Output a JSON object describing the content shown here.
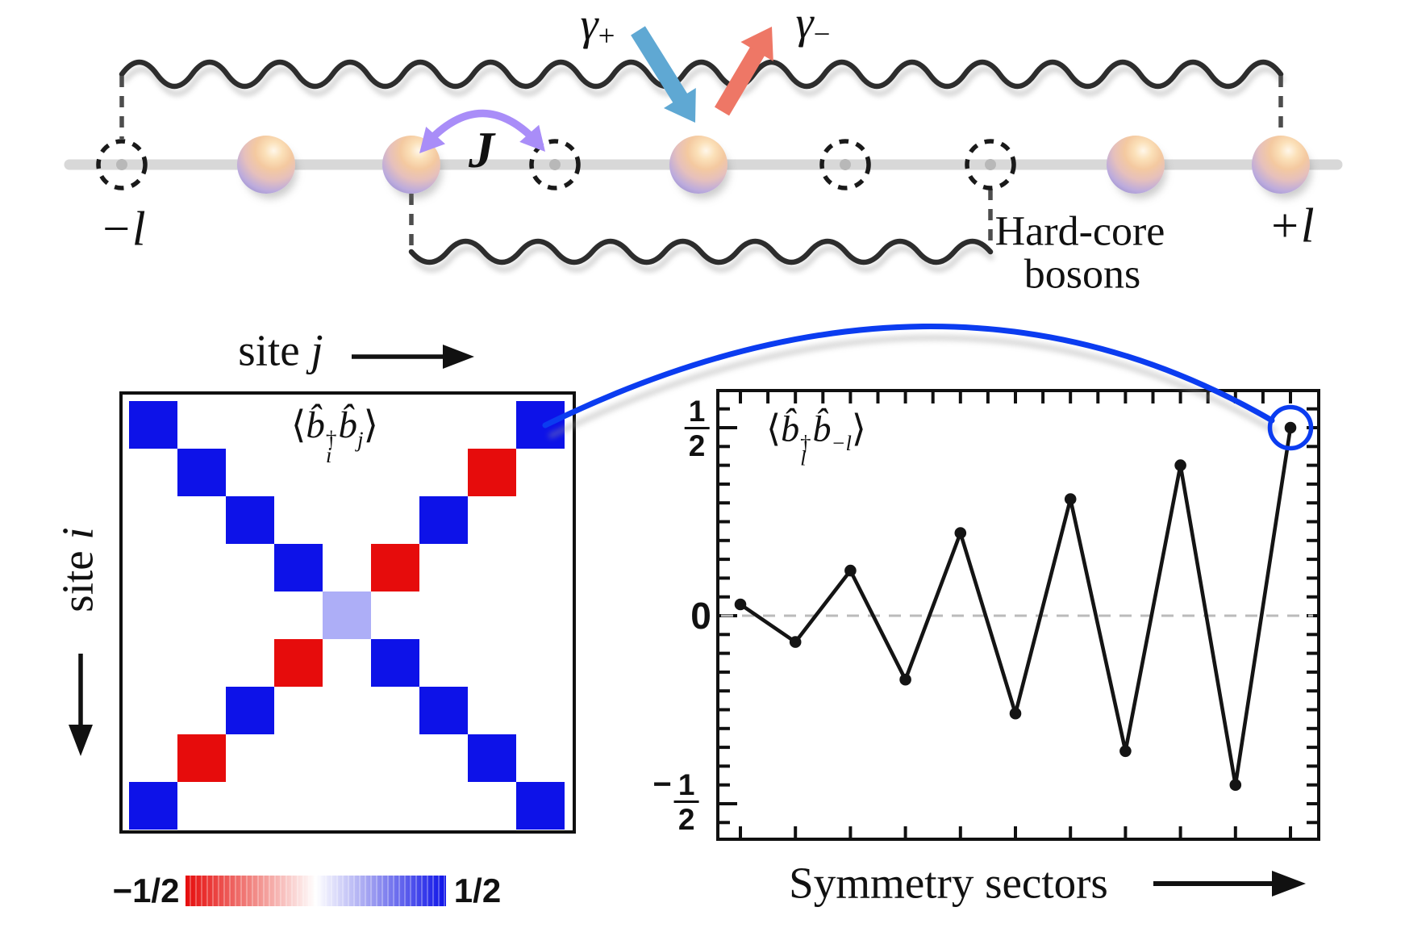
{
  "diagram": {
    "gamma_plus": {
      "base": "γ",
      "sub": "+"
    },
    "gamma_minus": {
      "base": "γ",
      "sub": "−"
    },
    "hopping_label": "J",
    "left_site_label": "−l",
    "right_site_label": "+l",
    "hardcore_label": {
      "line1": "Hard-core",
      "line2": "bosons"
    },
    "sites": [
      {
        "index": 1,
        "type": "empty"
      },
      {
        "index": 2,
        "type": "boson"
      },
      {
        "index": 3,
        "type": "boson"
      },
      {
        "index": 4,
        "type": "empty"
      },
      {
        "index": 5,
        "type": "boson"
      },
      {
        "index": 6,
        "type": "empty"
      },
      {
        "index": 7,
        "type": "empty"
      },
      {
        "index": 8,
        "type": "boson"
      },
      {
        "index": 9,
        "type": "boson"
      }
    ]
  },
  "heatmap": {
    "xlabel": {
      "word": "site ",
      "var": "j"
    },
    "ylabel": {
      "word": "site ",
      "var": "i"
    },
    "title": {
      "open": "⟨",
      "b1": "b̂",
      "dagger": "†",
      "sub1": "i",
      "b2": "b̂",
      "sub2": "j",
      "close": "⟩"
    },
    "colorbar": {
      "min_label": "−1/2",
      "max_label": "1/2"
    }
  },
  "lineplot": {
    "title": {
      "open": "⟨",
      "b1": "b̂",
      "dagger": "†",
      "sub1": "l",
      "b2": "b̂",
      "sub2": "−l",
      "close": "⟩"
    },
    "xlabel": "Symmetry sectors",
    "ytick_top": {
      "num": "1",
      "den": "2"
    },
    "ytick_zero": "0",
    "ytick_bottom": {
      "sign": "−",
      "num": "1",
      "den": "2"
    }
  },
  "chart_data": [
    {
      "type": "heatmap",
      "title": "⟨b̂_i† b̂_j⟩",
      "xlabel": "site j",
      "ylabel": "site i",
      "grid_size": [
        9,
        9
      ],
      "value_range": [
        -0.5,
        0.5
      ],
      "colormap": {
        "min_color": "#e60c0c",
        "mid_color": "#ffffff",
        "max_color": "#0d12e8"
      },
      "cells": [
        {
          "i": 1,
          "j": 1,
          "v": 0.5
        },
        {
          "i": 2,
          "j": 2,
          "v": 0.5
        },
        {
          "i": 3,
          "j": 3,
          "v": 0.5
        },
        {
          "i": 4,
          "j": 4,
          "v": 0.5
        },
        {
          "i": 5,
          "j": 5,
          "v": 0.17
        },
        {
          "i": 6,
          "j": 6,
          "v": 0.5
        },
        {
          "i": 7,
          "j": 7,
          "v": 0.5
        },
        {
          "i": 8,
          "j": 8,
          "v": 0.5
        },
        {
          "i": 9,
          "j": 9,
          "v": 0.5
        },
        {
          "i": 1,
          "j": 9,
          "v": 0.5
        },
        {
          "i": 2,
          "j": 8,
          "v": -0.5
        },
        {
          "i": 3,
          "j": 7,
          "v": 0.5
        },
        {
          "i": 4,
          "j": 6,
          "v": -0.5
        },
        {
          "i": 6,
          "j": 4,
          "v": -0.5
        },
        {
          "i": 7,
          "j": 3,
          "v": 0.5
        },
        {
          "i": 8,
          "j": 2,
          "v": -0.5
        },
        {
          "i": 9,
          "j": 1,
          "v": 0.5
        }
      ],
      "colorbar_ticks": [
        "-1/2",
        "1/2"
      ]
    },
    {
      "type": "line",
      "title": "⟨b̂_l† b̂_−l⟩",
      "xlabel": "Symmetry sectors",
      "x": [
        1,
        2,
        3,
        4,
        5,
        6,
        7,
        8,
        9,
        10,
        11
      ],
      "y": [
        0.03,
        -0.07,
        0.12,
        -0.17,
        0.22,
        -0.26,
        0.31,
        -0.36,
        0.4,
        -0.45,
        0.5
      ],
      "ylim": [
        -0.6,
        0.6
      ],
      "yticks": [
        {
          "v": 0.5,
          "label": "1/2"
        },
        {
          "v": 0,
          "label": "0"
        },
        {
          "v": -0.5,
          "label": "-1/2"
        }
      ],
      "zero_line": "dashed-gray",
      "annotation": "last point circled in blue and connected by blue curve to heatmap corner cell (1,9)"
    }
  ]
}
